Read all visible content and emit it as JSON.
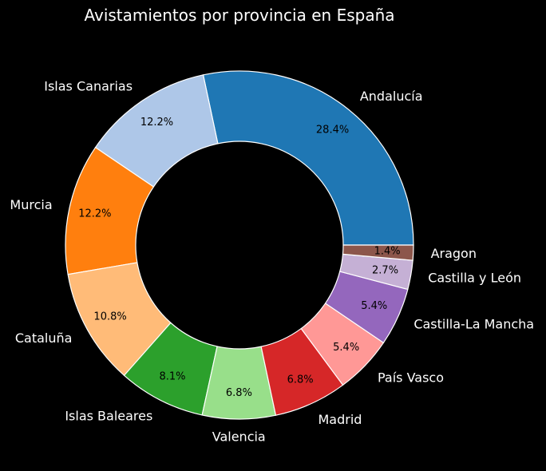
{
  "chart_data": {
    "type": "pie",
    "title": "Avistamientos por provincia en España",
    "donut": true,
    "start_angle_deg": 0,
    "direction": "counterclockwise",
    "slices": [
      {
        "label": "Andalucía",
        "value": 28.4,
        "pct_label": "28.4%",
        "color": "#1f77b4"
      },
      {
        "label": "Islas Canarias",
        "value": 12.2,
        "pct_label": "12.2%",
        "color": "#aec7e8"
      },
      {
        "label": "Murcia",
        "value": 12.2,
        "pct_label": "12.2%",
        "color": "#ff7f0e"
      },
      {
        "label": "Cataluña",
        "value": 10.8,
        "pct_label": "10.8%",
        "color": "#ffbb78"
      },
      {
        "label": "Islas Baleares",
        "value": 8.1,
        "pct_label": "8.1%",
        "color": "#2ca02c"
      },
      {
        "label": "Valencia",
        "value": 6.8,
        "pct_label": "6.8%",
        "color": "#98df8a"
      },
      {
        "label": "Madrid",
        "value": 6.8,
        "pct_label": "6.8%",
        "color": "#d62728"
      },
      {
        "label": "País Vasco",
        "value": 5.4,
        "pct_label": "5.4%",
        "color": "#ff9896"
      },
      {
        "label": "Castilla-La Mancha",
        "value": 5.4,
        "pct_label": "5.4%",
        "color": "#9467bd"
      },
      {
        "label": "Castilla y León",
        "value": 2.7,
        "pct_label": "2.7%",
        "color": "#c5b0d5"
      },
      {
        "label": "Aragon",
        "value": 1.4,
        "pct_label": "1.4%",
        "color": "#8c564b"
      }
    ]
  }
}
